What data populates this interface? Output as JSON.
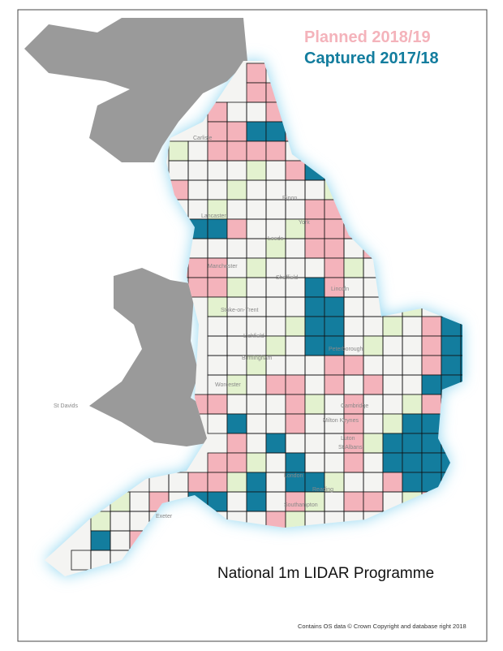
{
  "legend": [
    {
      "label": "Planned  2018/19",
      "color": "#f4b3bb"
    },
    {
      "label": "Captured 2017/18",
      "color": "#137d9e"
    }
  ],
  "title": "National 1m LIDAR Programme",
  "footer": "Contains OS data © Crown Copyright and database right 2018",
  "places": [
    "Carlisle",
    "Lancaster",
    "Ripon",
    "York",
    "Leeds",
    "Manchester",
    "Sheffield",
    "Lincoln",
    "Stoke-on-Trent",
    "Lichfield",
    "Birmingham",
    "Peterborough",
    "Worcester",
    "Cambridge",
    "Milton Keynes",
    "Luton",
    "St Albans",
    "London",
    "Reading",
    "Southampton",
    "Exeter",
    "St Davids"
  ]
}
